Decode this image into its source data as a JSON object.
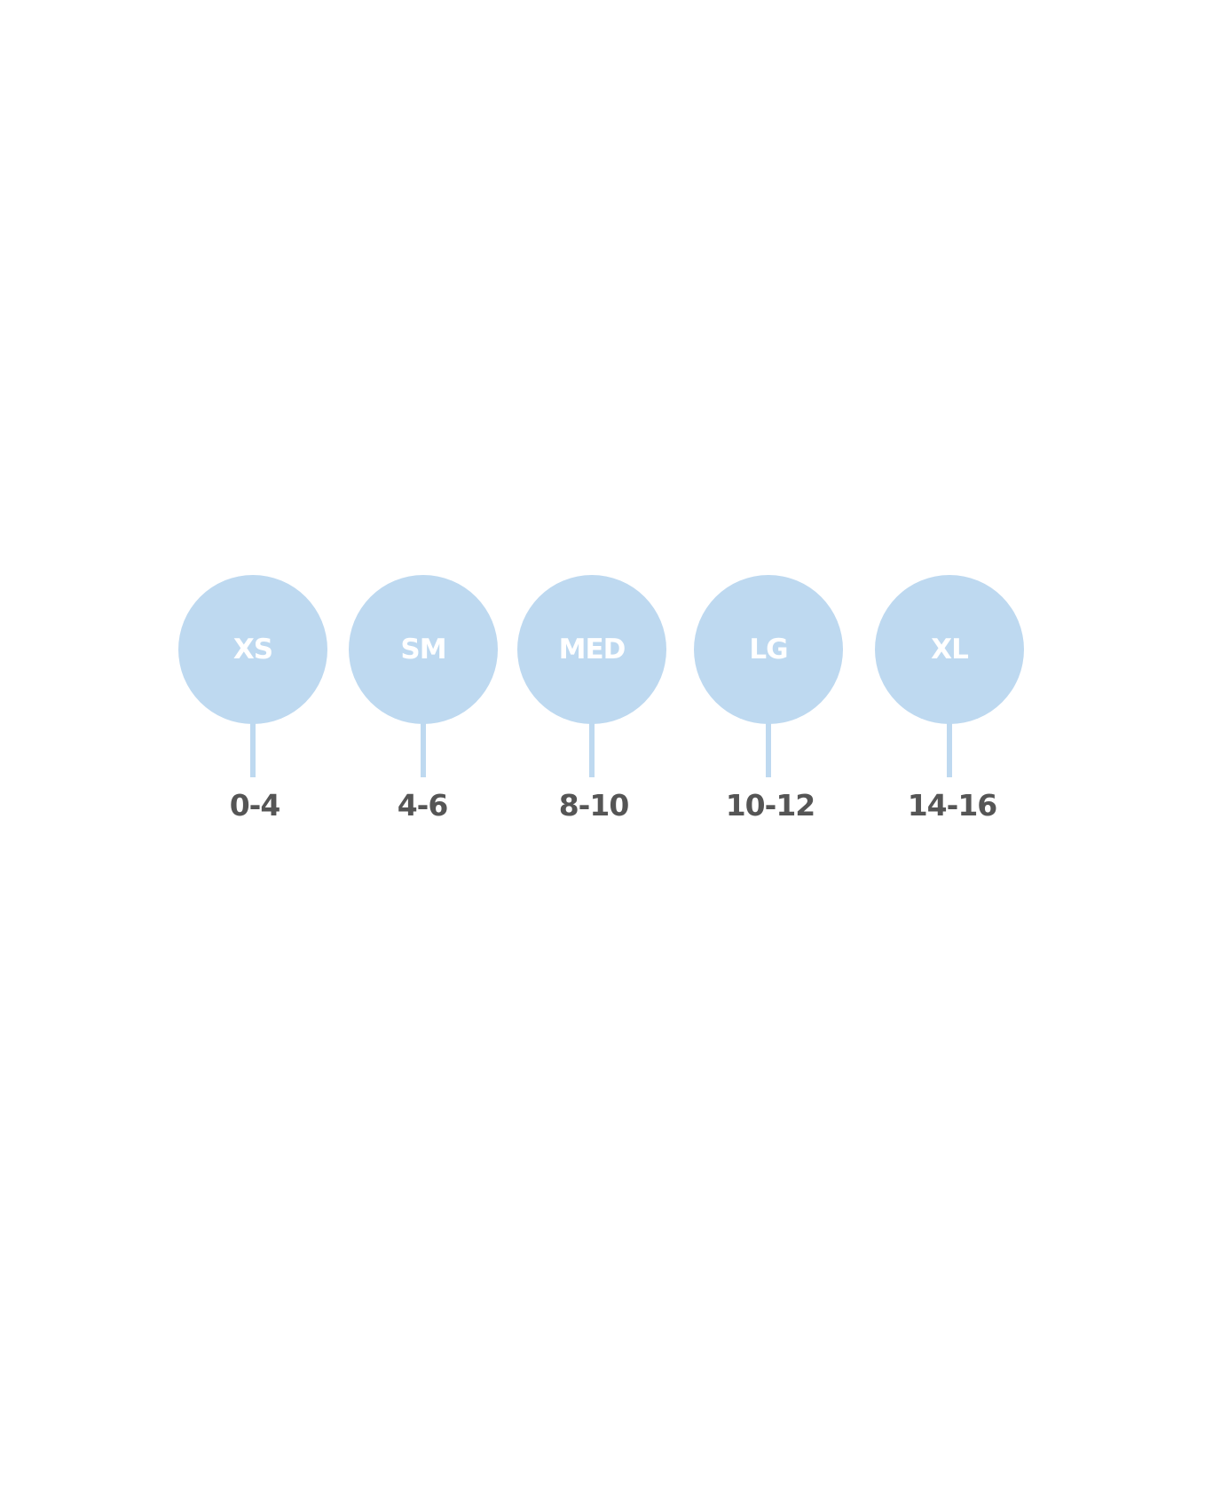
{
  "accent_color": "#bed9f0",
  "sizes": [
    {
      "label": "XS",
      "range": "0-4"
    },
    {
      "label": "SM",
      "range": "4-6"
    },
    {
      "label": "MED",
      "range": "8-10"
    },
    {
      "label": "LG",
      "range": "10-12"
    },
    {
      "label": "XL",
      "range": "14-16"
    }
  ]
}
